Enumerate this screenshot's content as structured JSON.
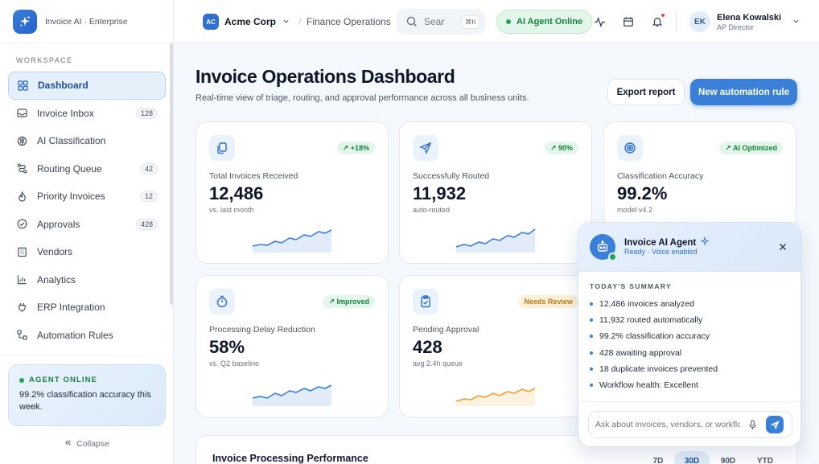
{
  "brand": {
    "name": "Invoice AI · Enterprise"
  },
  "sidebar": {
    "section_label": "WORKSPACE",
    "items": [
      {
        "label": "Dashboard",
        "icon": "grid-icon",
        "badge": ""
      },
      {
        "label": "Invoice Inbox",
        "icon": "inbox-icon",
        "badge": "128"
      },
      {
        "label": "AI Classification",
        "icon": "brain-icon",
        "badge": ""
      },
      {
        "label": "Routing Queue",
        "icon": "route-icon",
        "badge": "42"
      },
      {
        "label": "Priority Invoices",
        "icon": "flame-icon",
        "badge": "12"
      },
      {
        "label": "Approvals",
        "icon": "check-circle-icon",
        "badge": "428"
      },
      {
        "label": "Vendors",
        "icon": "building-icon",
        "badge": ""
      },
      {
        "label": "Analytics",
        "icon": "bar-chart-icon",
        "badge": ""
      },
      {
        "label": "ERP Integration",
        "icon": "plug-icon",
        "badge": ""
      },
      {
        "label": "Automation Rules",
        "icon": "workflow-icon",
        "badge": ""
      }
    ],
    "agent_card": {
      "title": "AGENT ONLINE",
      "text": "99.2% classification accuracy this week."
    },
    "collapse_label": "Collapse"
  },
  "header": {
    "org_initials": "AC",
    "org_name": "Acme Corp",
    "breadcrumb_sep": "/",
    "breadcrumb": "Finance Operations",
    "search_placeholder": "Sear",
    "search_shortcut": "⌘K",
    "agent_status": "AI Agent Online",
    "user": {
      "initials": "EK",
      "name": "Elena Kowalski",
      "role": "AP Director"
    }
  },
  "main": {
    "title": "Invoice Operations Dashboard",
    "subtitle": "Real-time view of triage, routing, and approval performance across all business units.",
    "export_label": "Export report",
    "new_rule_label": "New automation rule",
    "kpis": [
      {
        "label": "Total Invoices Received",
        "value": "12,486",
        "sub": "vs. last month",
        "pill": "↗ +18%",
        "pill_color": "green",
        "icon": "documents-icon",
        "trend_color": "#3a7fd8"
      },
      {
        "label": "Successfully Routed",
        "value": "11,932",
        "sub": "auto-routed",
        "pill": "↗ 90%",
        "pill_color": "green",
        "icon": "send-icon",
        "trend_color": "#3a7fd8"
      },
      {
        "label": "Classification Accuracy",
        "value": "99.2%",
        "sub": "model v4.2",
        "pill": "↗ AI Optimized",
        "pill_color": "green",
        "icon": "target-icon",
        "trend_color": "#3a7fd8"
      },
      {
        "label": "Processing Delay Reduction",
        "value": "58%",
        "sub": "vs. Q2 baseline",
        "pill": "↗ Improved",
        "pill_color": "green",
        "icon": "timer-icon",
        "trend_color": "#3a7fd8"
      },
      {
        "label": "Pending Approval",
        "value": "428",
        "sub": "avg 2.4h queue",
        "pill": "Needs Review",
        "pill_color": "amber",
        "icon": "clipboard-check-icon",
        "trend_color": "#f0a030"
      }
    ],
    "performance": {
      "title": "Invoice Processing Performance",
      "ranges": [
        "7D",
        "30D",
        "90D",
        "YTD"
      ],
      "active_range": "30D"
    }
  },
  "agent_panel": {
    "name": "Invoice AI Agent",
    "status": "Ready · Voice enabled",
    "summary_title": "TODAY'S SUMMARY",
    "summary": [
      "12,486 invoices analyzed",
      "11,932 routed automatically",
      "99.2% classification accuracy",
      "428 awaiting approval",
      "18 duplicate invoices prevented",
      "Workflow health: Excellent"
    ],
    "input_placeholder": "Ask about invoices, vendors, or workflows..."
  },
  "colors": {
    "accent": "#3a7fd8",
    "success": "#22a55a",
    "warning": "#f0a030",
    "alert": "#ef4444"
  }
}
